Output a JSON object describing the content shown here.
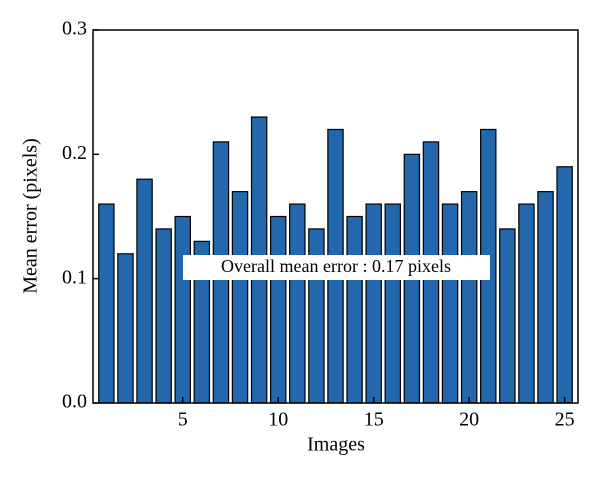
{
  "chart_data": {
    "type": "bar",
    "x": [
      1,
      2,
      3,
      4,
      5,
      6,
      7,
      8,
      9,
      10,
      11,
      12,
      13,
      14,
      15,
      16,
      17,
      18,
      19,
      20,
      21,
      22,
      23,
      24,
      25
    ],
    "values": [
      0.16,
      0.12,
      0.18,
      0.14,
      0.15,
      0.13,
      0.21,
      0.17,
      0.23,
      0.15,
      0.16,
      0.14,
      0.22,
      0.15,
      0.16,
      0.16,
      0.2,
      0.21,
      0.16,
      0.17,
      0.22,
      0.14,
      0.16,
      0.17,
      0.19
    ],
    "color": "#2367ad",
    "xlabel": "Images",
    "ylabel": "Mean error (pixels)",
    "annotation": "Overall mean error : 0.17 pixels",
    "xlim": [
      0.3,
      25.7
    ],
    "xticks": [
      5,
      10,
      15,
      20,
      25
    ],
    "ylim": [
      0,
      0.3
    ],
    "yticks": [
      {
        "value": 0,
        "label": "0.0"
      },
      0.1,
      0.2,
      0.3
    ]
  }
}
